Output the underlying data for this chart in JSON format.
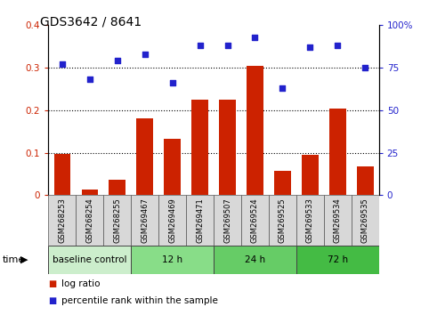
{
  "title": "GDS3642 / 8641",
  "samples": [
    "GSM268253",
    "GSM268254",
    "GSM268255",
    "GSM269467",
    "GSM269469",
    "GSM269471",
    "GSM269507",
    "GSM269524",
    "GSM269525",
    "GSM269533",
    "GSM269534",
    "GSM269535"
  ],
  "log_ratio": [
    0.097,
    0.013,
    0.037,
    0.18,
    0.133,
    0.225,
    0.224,
    0.305,
    0.057,
    0.095,
    0.205,
    0.068
  ],
  "percentile_rank": [
    77,
    68,
    79,
    83,
    66,
    88,
    88,
    93,
    63,
    87,
    88,
    75
  ],
  "bar_color": "#cc2200",
  "dot_color": "#2222cc",
  "groups": [
    {
      "label": "baseline control",
      "start": 0,
      "end": 3,
      "color": "#cceecc"
    },
    {
      "label": "12 h",
      "start": 3,
      "end": 6,
      "color": "#88dd88"
    },
    {
      "label": "24 h",
      "start": 6,
      "end": 9,
      "color": "#66cc66"
    },
    {
      "label": "72 h",
      "start": 9,
      "end": 12,
      "color": "#44bb44"
    }
  ],
  "ylim_left": [
    0,
    0.4
  ],
  "ylim_right": [
    0,
    100
  ],
  "yticks_left": [
    0,
    0.1,
    0.2,
    0.3,
    0.4
  ],
  "yticks_right": [
    0,
    25,
    50,
    75,
    100
  ],
  "yticklabels_left": [
    "0",
    "0.1",
    "0.2",
    "0.3",
    "0.4"
  ],
  "yticklabels_right": [
    "0",
    "25",
    "50",
    "75",
    "100%"
  ],
  "bg_color": "#ffffff",
  "label_bg": "#d8d8d8",
  "tick_color_left": "#cc2200",
  "tick_color_right": "#2222cc"
}
